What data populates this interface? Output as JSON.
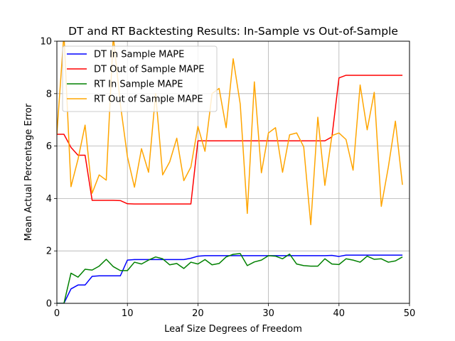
{
  "chart_data": {
    "type": "line",
    "title": "DT and RT Backtesting Results: In-Sample vs Out-of-Sample",
    "xlabel": "Leaf Size Degrees of Freedom",
    "ylabel": "Mean Actual Percentage Error",
    "xlim": [
      0,
      50
    ],
    "ylim": [
      0,
      10
    ],
    "xticks": [
      0,
      10,
      20,
      30,
      40,
      50
    ],
    "yticks": [
      0,
      2,
      4,
      6,
      8,
      10
    ],
    "x_tick_labels": [
      "0",
      "10",
      "20",
      "30",
      "40",
      "50"
    ],
    "y_tick_labels": [
      "0",
      "2",
      "4",
      "6",
      "8",
      "10"
    ],
    "grid": true,
    "legend_position": "top-left",
    "x": [
      0,
      1,
      2,
      3,
      4,
      5,
      6,
      7,
      8,
      9,
      10,
      11,
      12,
      13,
      14,
      15,
      16,
      17,
      18,
      19,
      20,
      21,
      22,
      23,
      24,
      25,
      26,
      27,
      28,
      29,
      30,
      31,
      32,
      33,
      34,
      35,
      36,
      37,
      38,
      39,
      40,
      41,
      42,
      43,
      44,
      45,
      46,
      47,
      48,
      49
    ],
    "series": [
      {
        "name": "DT In Sample MAPE",
        "color": "#0000ff",
        "values": [
          0,
          0,
          0.55,
          0.7,
          0.7,
          1.03,
          1.05,
          1.05,
          1.05,
          1.05,
          1.65,
          1.67,
          1.67,
          1.67,
          1.67,
          1.67,
          1.67,
          1.67,
          1.67,
          1.72,
          1.8,
          1.82,
          1.82,
          1.82,
          1.82,
          1.82,
          1.82,
          1.82,
          1.82,
          1.82,
          1.82,
          1.82,
          1.82,
          1.82,
          1.82,
          1.82,
          1.82,
          1.82,
          1.82,
          1.83,
          1.79,
          1.84,
          1.84,
          1.84,
          1.84,
          1.84,
          1.84,
          1.84,
          1.84,
          1.84
        ]
      },
      {
        "name": "DT Out of Sample MAPE",
        "color": "#ff0000",
        "values": [
          6.45,
          6.45,
          5.95,
          5.65,
          5.65,
          3.93,
          3.93,
          3.93,
          3.93,
          3.92,
          3.8,
          3.79,
          3.79,
          3.79,
          3.79,
          3.79,
          3.79,
          3.79,
          3.79,
          3.79,
          6.2,
          6.2,
          6.2,
          6.2,
          6.2,
          6.2,
          6.2,
          6.2,
          6.2,
          6.2,
          6.2,
          6.2,
          6.2,
          6.2,
          6.2,
          6.2,
          6.2,
          6.2,
          6.2,
          6.35,
          8.6,
          8.7,
          8.7,
          8.7,
          8.7,
          8.7,
          8.7,
          8.7,
          8.7,
          8.7
        ]
      },
      {
        "name": "RT In Sample MAPE",
        "color": "#008000",
        "values": [
          0,
          0,
          1.15,
          1.0,
          1.3,
          1.27,
          1.42,
          1.68,
          1.4,
          1.25,
          1.25,
          1.57,
          1.5,
          1.65,
          1.77,
          1.7,
          1.47,
          1.52,
          1.33,
          1.57,
          1.5,
          1.67,
          1.47,
          1.52,
          1.77,
          1.87,
          1.9,
          1.44,
          1.58,
          1.65,
          1.82,
          1.8,
          1.7,
          1.88,
          1.5,
          1.44,
          1.42,
          1.42,
          1.7,
          1.5,
          1.48,
          1.7,
          1.65,
          1.57,
          1.8,
          1.68,
          1.7,
          1.57,
          1.62,
          1.77
        ]
      },
      {
        "name": "RT Out of Sample MAPE",
        "color": "#ffa500",
        "values": [
          6.45,
          10.3,
          4.45,
          5.5,
          6.8,
          4.2,
          4.9,
          4.7,
          10.2,
          7.6,
          5.6,
          4.43,
          5.9,
          5.0,
          8.0,
          4.9,
          5.4,
          6.3,
          4.68,
          5.2,
          6.75,
          5.8,
          8.0,
          8.2,
          6.7,
          9.33,
          7.6,
          3.43,
          8.45,
          4.98,
          6.5,
          6.7,
          5.0,
          6.43,
          6.5,
          5.97,
          3.0,
          7.1,
          4.5,
          6.4,
          6.5,
          6.25,
          5.08,
          8.33,
          6.62,
          8.05,
          3.7,
          5.2,
          6.95,
          4.52
        ]
      }
    ]
  }
}
